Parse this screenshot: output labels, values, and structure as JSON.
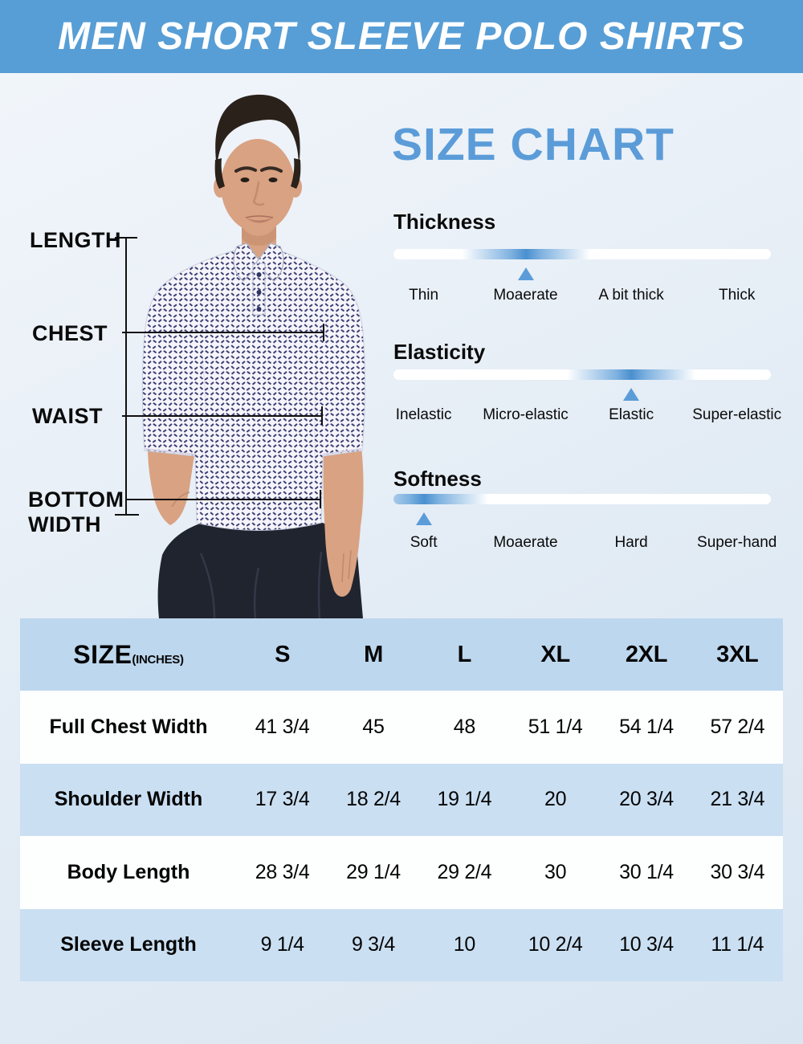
{
  "banner": {
    "title": "MEN SHORT SLEEVE POLO SHIRTS"
  },
  "size_chart": {
    "title": "SIZE CHART",
    "attributes": [
      {
        "name": "Thickness",
        "labels": [
          "Thin",
          "Moaerate",
          "A bit thick",
          "Thick"
        ],
        "selected": "Moaerate",
        "selected_index": 1
      },
      {
        "name": "Elasticity",
        "labels": [
          "Inelastic",
          "Micro-elastic",
          "Elastic",
          "Super-elastic"
        ],
        "selected": "Elastic",
        "selected_index": 2
      },
      {
        "name": "Softness",
        "labels": [
          "Soft",
          "Moaerate",
          "Hard",
          "Super-hand"
        ],
        "selected": "Soft",
        "selected_index": 0
      }
    ]
  },
  "measurements": {
    "length_label": "LENGTH",
    "chest_label": "CHEST",
    "waist_label": "WAIST",
    "bottom_width_label": "BOTTOM WIDTH"
  },
  "table": {
    "header": {
      "label": "SIZE",
      "unit": "(INCHES)",
      "columns": [
        "S",
        "M",
        "L",
        "XL",
        "2XL",
        "3XL"
      ]
    },
    "rows": [
      {
        "label": "Full Chest Width",
        "values": [
          "41 3/4",
          "45",
          "48",
          "51 1/4",
          "54 1/4",
          "57 2/4"
        ]
      },
      {
        "label": "Shoulder Width",
        "values": [
          "17 3/4",
          "18 2/4",
          "19 1/4",
          "20",
          "20 3/4",
          "21 3/4"
        ]
      },
      {
        "label": "Body Length",
        "values": [
          "28 3/4",
          "29 1/4",
          "29 2/4",
          "30",
          "30 1/4",
          "30 3/4"
        ]
      },
      {
        "label": "Sleeve Length",
        "values": [
          "9 1/4",
          "9 3/4",
          "10",
          "10 2/4",
          "10 3/4",
          "11 1/4"
        ]
      }
    ]
  },
  "colors": {
    "accent": "#5b9cd8",
    "banner_bg": "#579ed6",
    "table_head_bg": "#bdd7ee",
    "row_alt_bg": "#cadff2",
    "row_white": "#fdfefe",
    "text": "#0d0d0d"
  }
}
